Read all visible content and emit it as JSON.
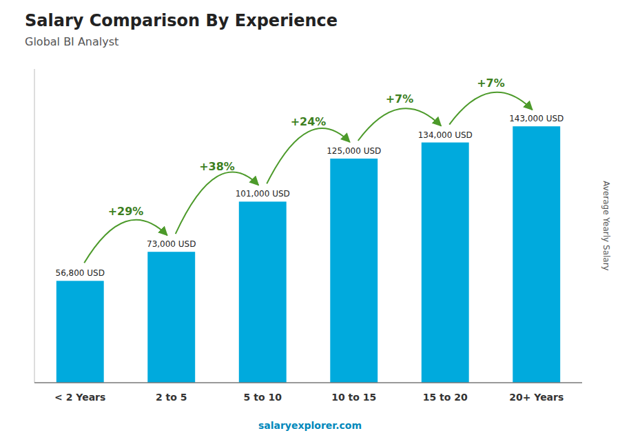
{
  "chart_data": {
    "type": "bar",
    "title": "Salary Comparison By Experience",
    "subtitle": "Global BI Analyst",
    "ylabel": "Average Yearly Salary",
    "categories": [
      "< 2 Years",
      "2 to 5",
      "5 to 10",
      "10 to 15",
      "15 to 20",
      "20+ Years"
    ],
    "values": [
      56800,
      73000,
      101000,
      125000,
      134000,
      143000
    ],
    "value_labels": [
      "56,800 USD",
      "73,000 USD",
      "101,000 USD",
      "125,000 USD",
      "134,000 USD",
      "143,000 USD"
    ],
    "data_labels": true,
    "annotations": [
      "+29%",
      "+38%",
      "+24%",
      "+7%",
      "+7%"
    ],
    "watermark": "salaryexplorer.com",
    "color": "#00AADD",
    "ylim": [
      0,
      175000
    ],
    "tick_labels": "x",
    "grid": false
  }
}
